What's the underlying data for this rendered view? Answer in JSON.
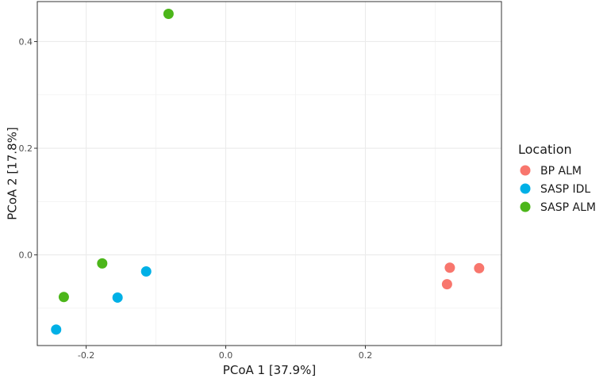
{
  "chart_data": {
    "type": "scatter",
    "xlabel": "PCoA 1 [37.9%]",
    "ylabel": "PCoA 2 [17.8%]",
    "xlim": [
      -0.27,
      0.395
    ],
    "ylim": [
      -0.17,
      0.475
    ],
    "x_ticks": [
      -0.2,
      0.0,
      0.2
    ],
    "x_tick_labels": [
      "-0.2",
      "0.0",
      "0.2"
    ],
    "y_ticks": [
      0.0,
      0.2,
      0.4
    ],
    "y_tick_labels": [
      "0.0",
      "0.2",
      "0.4"
    ],
    "grid": true,
    "legend_title": "Location",
    "legend_position": "right",
    "series": [
      {
        "name": "BP ALM",
        "color": "#F8766D",
        "points": [
          {
            "x": 0.317,
            "y": -0.055
          },
          {
            "x": 0.321,
            "y": -0.024
          },
          {
            "x": 0.363,
            "y": -0.025
          }
        ]
      },
      {
        "name": "SASP IDL",
        "color": "#00B0E6",
        "points": [
          {
            "x": -0.243,
            "y": -0.14
          },
          {
            "x": -0.155,
            "y": -0.08
          },
          {
            "x": -0.114,
            "y": -0.031
          }
        ]
      },
      {
        "name": "SASP ALM",
        "color": "#4CB61A",
        "points": [
          {
            "x": -0.082,
            "y": 0.452
          },
          {
            "x": -0.177,
            "y": -0.016
          },
          {
            "x": -0.232,
            "y": -0.079
          }
        ]
      }
    ]
  }
}
